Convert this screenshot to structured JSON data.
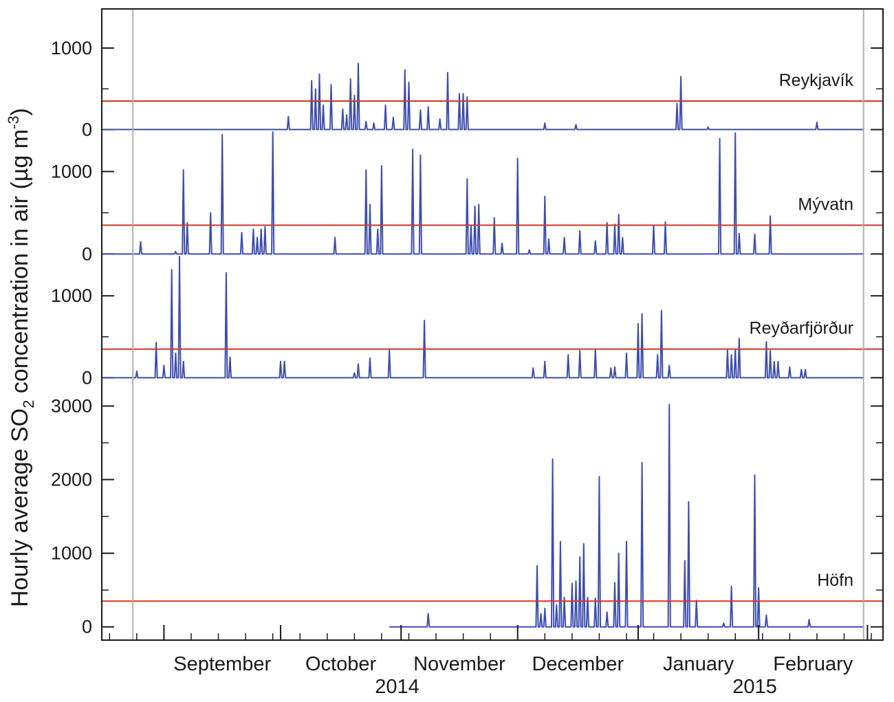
{
  "chart_data": {
    "type": "line",
    "ylabel": {
      "before": "Hourly average SO",
      "sub": "2",
      "middle": " concentration in air (µg m",
      "sup": "-3",
      "after": ")"
    },
    "x_range": [
      "2014-08-16",
      "2015-03-05"
    ],
    "x_markers": [
      "2014-08-24",
      "2015-02-28"
    ],
    "months": [
      {
        "label": "September",
        "start": "2014-09-01",
        "end": "2014-10-01"
      },
      {
        "label": "October",
        "start": "2014-10-01",
        "end": "2014-11-01"
      },
      {
        "label": "November",
        "start": "2014-11-01",
        "end": "2014-12-01"
      },
      {
        "label": "December",
        "start": "2014-12-01",
        "end": "2015-01-01"
      },
      {
        "label": "January",
        "start": "2015-01-01",
        "end": "2015-02-01"
      },
      {
        "label": "February",
        "start": "2015-02-01",
        "end": "2015-03-01"
      }
    ],
    "years": [
      {
        "label": "2014",
        "date": "2014-10-31"
      },
      {
        "label": "2015",
        "date": "2015-01-31"
      }
    ],
    "colors": {
      "series": "#3d4db0",
      "threshold": "#e0301e",
      "gray": "#b0b0b0",
      "axis": "#1a1a1a"
    },
    "panels": [
      {
        "station": "Reykjavík",
        "threshold": 350,
        "ylim": [
          -30,
          1480
        ],
        "yticks": [
          0,
          1000
        ],
        "series_start": "2014-08-16",
        "peaks": [
          [
            "2014-10-03",
            160
          ],
          [
            "2014-10-09",
            600
          ],
          [
            "2014-10-10",
            500
          ],
          [
            "2014-10-11",
            680
          ],
          [
            "2014-10-12",
            300
          ],
          [
            "2014-10-14",
            550
          ],
          [
            "2014-10-17",
            250
          ],
          [
            "2014-10-18",
            180
          ],
          [
            "2014-10-19",
            620
          ],
          [
            "2014-10-20",
            420
          ],
          [
            "2014-10-21",
            810
          ],
          [
            "2014-10-23",
            100
          ],
          [
            "2014-10-25",
            80
          ],
          [
            "2014-10-28",
            300
          ],
          [
            "2014-10-30",
            150
          ],
          [
            "2014-11-02",
            730
          ],
          [
            "2014-11-03",
            580
          ],
          [
            "2014-11-06",
            240
          ],
          [
            "2014-11-08",
            280
          ],
          [
            "2014-11-11",
            130
          ],
          [
            "2014-11-13",
            700
          ],
          [
            "2014-11-16",
            440
          ],
          [
            "2014-11-17",
            440
          ],
          [
            "2014-11-18",
            400
          ],
          [
            "2014-12-08",
            80
          ],
          [
            "2014-12-16",
            60
          ],
          [
            "2015-01-11",
            320
          ],
          [
            "2015-01-12",
            650
          ],
          [
            "2015-01-19",
            30
          ],
          [
            "2015-02-16",
            90
          ]
        ]
      },
      {
        "station": "Mývatn",
        "threshold": 350,
        "ylim": [
          -30,
          1480
        ],
        "yticks": [
          0,
          1000
        ],
        "series_start": "2014-08-16",
        "peaks": [
          [
            "2014-08-26",
            150
          ],
          [
            "2014-09-04",
            30
          ],
          [
            "2014-09-06",
            1020
          ],
          [
            "2014-09-07",
            380
          ],
          [
            "2014-09-13",
            500
          ],
          [
            "2014-09-16",
            1450
          ],
          [
            "2014-09-21",
            260
          ],
          [
            "2014-09-24",
            300
          ],
          [
            "2014-09-25",
            200
          ],
          [
            "2014-09-26",
            300
          ],
          [
            "2014-09-27",
            330
          ],
          [
            "2014-09-29",
            1480
          ],
          [
            "2014-10-15",
            200
          ],
          [
            "2014-10-23",
            1020
          ],
          [
            "2014-10-24",
            600
          ],
          [
            "2014-10-26",
            300
          ],
          [
            "2014-10-27",
            1070
          ],
          [
            "2014-11-04",
            1270
          ],
          [
            "2014-11-06",
            1200
          ],
          [
            "2014-11-18",
            910
          ],
          [
            "2014-11-19",
            350
          ],
          [
            "2014-11-20",
            580
          ],
          [
            "2014-11-21",
            600
          ],
          [
            "2014-11-25",
            440
          ],
          [
            "2014-11-27",
            130
          ],
          [
            "2014-12-01",
            1160
          ],
          [
            "2014-12-04",
            50
          ],
          [
            "2014-12-08",
            700
          ],
          [
            "2014-12-09",
            180
          ],
          [
            "2014-12-13",
            200
          ],
          [
            "2014-12-17",
            280
          ],
          [
            "2014-12-21",
            160
          ],
          [
            "2014-12-24",
            380
          ],
          [
            "2014-12-26",
            360
          ],
          [
            "2014-12-27",
            480
          ],
          [
            "2014-12-28",
            200
          ],
          [
            "2015-01-05",
            350
          ],
          [
            "2015-01-08",
            390
          ],
          [
            "2015-01-22",
            1400
          ],
          [
            "2015-01-26",
            1470
          ],
          [
            "2015-01-27",
            250
          ],
          [
            "2015-01-31",
            240
          ],
          [
            "2015-02-04",
            460
          ]
        ]
      },
      {
        "station": "Reyðarfjörður",
        "threshold": 350,
        "ylim": [
          -30,
          1480
        ],
        "yticks": [
          0,
          1000
        ],
        "series_start": "2014-08-16",
        "peaks": [
          [
            "2014-08-25",
            80
          ],
          [
            "2014-08-30",
            430
          ],
          [
            "2014-09-01",
            150
          ],
          [
            "2014-09-03",
            1320
          ],
          [
            "2014-09-04",
            300
          ],
          [
            "2014-09-05",
            1480
          ],
          [
            "2014-09-06",
            200
          ],
          [
            "2014-09-17",
            1280
          ],
          [
            "2014-09-18",
            250
          ],
          [
            "2014-10-01",
            200
          ],
          [
            "2014-10-02",
            200
          ],
          [
            "2014-10-20",
            60
          ],
          [
            "2014-10-21",
            170
          ],
          [
            "2014-10-24",
            240
          ],
          [
            "2014-10-29",
            340
          ],
          [
            "2014-11-07",
            700
          ],
          [
            "2014-12-05",
            120
          ],
          [
            "2014-12-08",
            200
          ],
          [
            "2014-12-14",
            280
          ],
          [
            "2014-12-17",
            330
          ],
          [
            "2014-12-21",
            350
          ],
          [
            "2014-12-25",
            120
          ],
          [
            "2014-12-26",
            130
          ],
          [
            "2014-12-29",
            300
          ],
          [
            "2015-01-01",
            660
          ],
          [
            "2015-01-02",
            780
          ],
          [
            "2015-01-06",
            280
          ],
          [
            "2015-01-07",
            820
          ],
          [
            "2015-01-09",
            150
          ],
          [
            "2015-01-24",
            340
          ],
          [
            "2015-01-25",
            280
          ],
          [
            "2015-01-26",
            350
          ],
          [
            "2015-01-27",
            480
          ],
          [
            "2015-02-03",
            440
          ],
          [
            "2015-02-04",
            330
          ],
          [
            "2015-02-05",
            200
          ],
          [
            "2015-02-06",
            200
          ],
          [
            "2015-02-09",
            130
          ],
          [
            "2015-02-12",
            100
          ],
          [
            "2015-02-13",
            100
          ]
        ]
      },
      {
        "station": "Höfn",
        "threshold": 350,
        "ylim": [
          -180,
          3350
        ],
        "yticks": [
          0,
          1000,
          2000,
          3000
        ],
        "series_start": "2014-10-29",
        "peaks": [
          [
            "2014-11-08",
            180
          ],
          [
            "2014-12-06",
            830
          ],
          [
            "2014-12-07",
            180
          ],
          [
            "2014-12-08",
            250
          ],
          [
            "2014-12-10",
            2280
          ],
          [
            "2014-12-11",
            300
          ],
          [
            "2014-12-12",
            1160
          ],
          [
            "2014-12-13",
            400
          ],
          [
            "2014-12-15",
            590
          ],
          [
            "2014-12-16",
            620
          ],
          [
            "2014-12-17",
            950
          ],
          [
            "2014-12-18",
            1130
          ],
          [
            "2014-12-19",
            400
          ],
          [
            "2014-12-21",
            390
          ],
          [
            "2014-12-22",
            2040
          ],
          [
            "2014-12-24",
            200
          ],
          [
            "2014-12-26",
            600
          ],
          [
            "2014-12-27",
            1000
          ],
          [
            "2014-12-29",
            1160
          ],
          [
            "2015-01-02",
            2230
          ],
          [
            "2015-01-09",
            3020
          ],
          [
            "2015-01-13",
            900
          ],
          [
            "2015-01-14",
            1700
          ],
          [
            "2015-01-16",
            360
          ],
          [
            "2015-01-23",
            50
          ],
          [
            "2015-01-25",
            550
          ],
          [
            "2015-01-31",
            2060
          ],
          [
            "2015-02-01",
            530
          ],
          [
            "2015-02-03",
            160
          ],
          [
            "2015-02-14",
            100
          ]
        ]
      }
    ]
  }
}
